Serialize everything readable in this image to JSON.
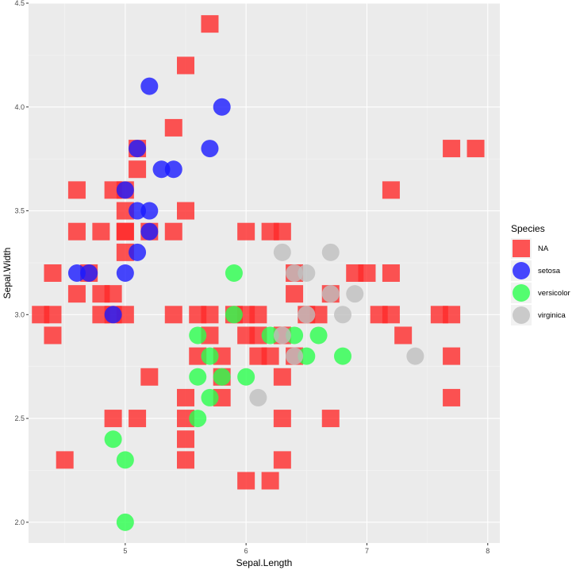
{
  "chart_data": {
    "type": "scatter",
    "xlabel": "Sepal.Length",
    "ylabel": "Sepal.Width",
    "xlim": [
      4.2,
      8.1
    ],
    "ylim": [
      1.9,
      4.5
    ],
    "x_ticks": [
      "5",
      "6",
      "7",
      "8"
    ],
    "y_ticks": [
      "2.0",
      "2.5",
      "3.0",
      "3.5",
      "4.0",
      "4.5"
    ],
    "grid": true,
    "background": "#ebebeb",
    "legend": {
      "title": "Species",
      "placement": "right",
      "entries": [
        {
          "label": "NA",
          "color": "#ff2a2a",
          "shape": "square"
        },
        {
          "label": "setosa",
          "color": "#1a1aff",
          "shape": "circle"
        },
        {
          "label": "versicolor",
          "color": "#2aff4d",
          "shape": "circle"
        },
        {
          "label": "virginica",
          "color": "#bfbfbf",
          "shape": "circle"
        }
      ]
    },
    "series": [
      {
        "name": "NA",
        "shape": "square",
        "color": "#ff2a2a",
        "points": [
          [
            5.7,
            4.4
          ],
          [
            5.5,
            4.2
          ],
          [
            5.4,
            3.9
          ],
          [
            7.7,
            3.8
          ],
          [
            7.9,
            3.8
          ],
          [
            5.1,
            3.8
          ],
          [
            5.1,
            3.7
          ],
          [
            4.6,
            3.6
          ],
          [
            5.0,
            3.6
          ],
          [
            7.2,
            3.6
          ],
          [
            4.9,
            3.6
          ],
          [
            5.0,
            3.5
          ],
          [
            5.0,
            3.4
          ],
          [
            5.5,
            3.5
          ],
          [
            4.6,
            3.4
          ],
          [
            4.8,
            3.4
          ],
          [
            5.0,
            3.4
          ],
          [
            5.2,
            3.4
          ],
          [
            5.4,
            3.4
          ],
          [
            6.0,
            3.4
          ],
          [
            6.2,
            3.4
          ],
          [
            6.3,
            3.4
          ],
          [
            5.0,
            3.3
          ],
          [
            4.4,
            3.2
          ],
          [
            4.7,
            3.2
          ],
          [
            6.4,
            3.2
          ],
          [
            6.9,
            3.2
          ],
          [
            7.0,
            3.2
          ],
          [
            7.2,
            3.2
          ],
          [
            4.6,
            3.1
          ],
          [
            4.8,
            3.1
          ],
          [
            4.9,
            3.1
          ],
          [
            6.4,
            3.1
          ],
          [
            6.7,
            3.1
          ],
          [
            4.4,
            3.0
          ],
          [
            4.3,
            3.0
          ],
          [
            4.8,
            3.0
          ],
          [
            4.9,
            3.0
          ],
          [
            5.0,
            3.0
          ],
          [
            5.4,
            3.0
          ],
          [
            5.6,
            3.0
          ],
          [
            5.7,
            3.0
          ],
          [
            5.9,
            3.0
          ],
          [
            6.0,
            3.0
          ],
          [
            6.1,
            3.0
          ],
          [
            6.5,
            3.0
          ],
          [
            6.6,
            3.0
          ],
          [
            7.1,
            3.0
          ],
          [
            7.2,
            3.0
          ],
          [
            7.6,
            3.0
          ],
          [
            7.7,
            3.0
          ],
          [
            4.4,
            2.9
          ],
          [
            5.7,
            2.9
          ],
          [
            6.0,
            2.9
          ],
          [
            6.1,
            2.9
          ],
          [
            6.3,
            2.9
          ],
          [
            7.3,
            2.9
          ],
          [
            5.6,
            2.8
          ],
          [
            5.8,
            2.8
          ],
          [
            6.1,
            2.8
          ],
          [
            6.2,
            2.8
          ],
          [
            6.4,
            2.8
          ],
          [
            7.7,
            2.8
          ],
          [
            5.2,
            2.7
          ],
          [
            5.8,
            2.7
          ],
          [
            6.3,
            2.7
          ],
          [
            5.5,
            2.6
          ],
          [
            5.8,
            2.6
          ],
          [
            7.7,
            2.6
          ],
          [
            4.9,
            2.5
          ],
          [
            5.1,
            2.5
          ],
          [
            5.5,
            2.5
          ],
          [
            6.3,
            2.5
          ],
          [
            6.7,
            2.5
          ],
          [
            5.5,
            2.4
          ],
          [
            4.5,
            2.3
          ],
          [
            5.5,
            2.3
          ],
          [
            6.3,
            2.3
          ],
          [
            6.0,
            2.2
          ],
          [
            6.2,
            2.2
          ]
        ]
      },
      {
        "name": "setosa",
        "shape": "circle",
        "color": "#1a1aff",
        "points": [
          [
            5.2,
            4.1
          ],
          [
            5.8,
            4.0
          ],
          [
            5.1,
            3.8
          ],
          [
            5.7,
            3.8
          ],
          [
            5.3,
            3.7
          ],
          [
            5.4,
            3.7
          ],
          [
            5.0,
            3.6
          ],
          [
            5.1,
            3.5
          ],
          [
            5.2,
            3.5
          ],
          [
            5.2,
            3.4
          ],
          [
            5.1,
            3.3
          ],
          [
            4.6,
            3.2
          ],
          [
            4.7,
            3.2
          ],
          [
            5.0,
            3.2
          ],
          [
            4.9,
            3.0
          ]
        ]
      },
      {
        "name": "versicolor",
        "shape": "circle",
        "color": "#2aff4d",
        "points": [
          [
            5.9,
            3.2
          ],
          [
            5.9,
            3.0
          ],
          [
            5.6,
            2.9
          ],
          [
            6.2,
            2.9
          ],
          [
            6.4,
            2.9
          ],
          [
            6.6,
            2.9
          ],
          [
            6.5,
            2.8
          ],
          [
            6.8,
            2.8
          ],
          [
            5.7,
            2.8
          ],
          [
            5.6,
            2.7
          ],
          [
            5.8,
            2.7
          ],
          [
            6.0,
            2.7
          ],
          [
            5.7,
            2.6
          ],
          [
            5.6,
            2.5
          ],
          [
            4.9,
            2.4
          ],
          [
            5.0,
            2.3
          ],
          [
            5.0,
            2.0
          ]
        ]
      },
      {
        "name": "virginica",
        "shape": "circle",
        "color": "#bfbfbf",
        "points": [
          [
            6.3,
            3.3
          ],
          [
            6.7,
            3.3
          ],
          [
            6.4,
            3.2
          ],
          [
            6.5,
            3.2
          ],
          [
            6.9,
            3.1
          ],
          [
            6.7,
            3.1
          ],
          [
            6.5,
            3.0
          ],
          [
            6.8,
            3.0
          ],
          [
            6.3,
            2.9
          ],
          [
            6.4,
            2.8
          ],
          [
            7.4,
            2.8
          ],
          [
            6.1,
            2.6
          ]
        ]
      }
    ]
  }
}
